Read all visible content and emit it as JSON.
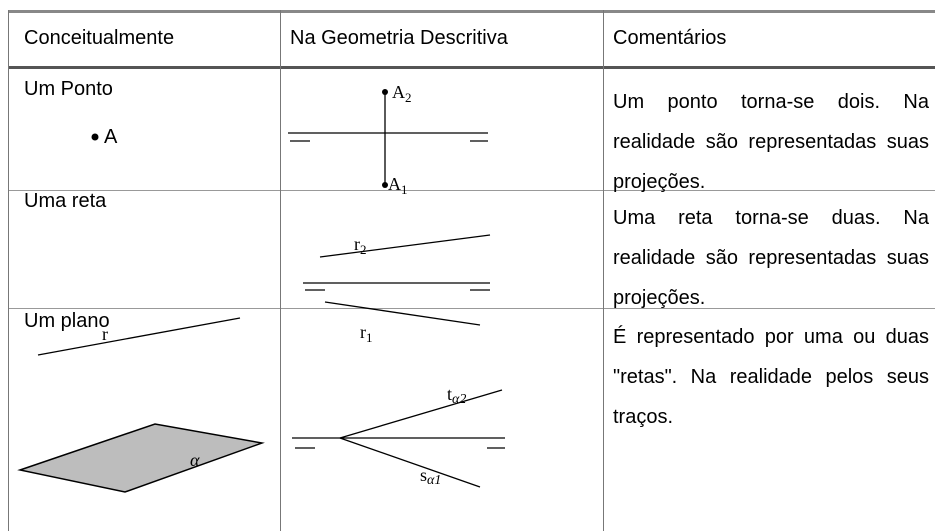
{
  "table": {
    "headers": [
      "Conceitualmente",
      "Na Geometria Descritiva",
      "Comentários"
    ],
    "rows": [
      {
        "concept": "Um Ponto",
        "concept_label": "A",
        "diagram_labels": [
          {
            "base": "A",
            "sub": "2"
          },
          {
            "base": "A",
            "sub": "1"
          }
        ],
        "comment": "Um ponto torna-se dois. Na realidade são representadas suas projeções."
      },
      {
        "concept": "Uma reta",
        "concept_label": "r",
        "diagram_labels": [
          {
            "base": "r",
            "sub": "2"
          },
          {
            "base": "r",
            "sub": "1"
          }
        ],
        "comment": "Uma reta torna-se duas. Na realidade são representadas suas projeções."
      },
      {
        "concept": "Um plano",
        "concept_label": "α",
        "diagram_labels": [
          {
            "base": "t",
            "sub": "α2"
          },
          {
            "base": "s",
            "sub": "α1"
          }
        ],
        "comment": "É representado por uma ou duas \"retas\". Na realidade pelos seus traços."
      }
    ]
  }
}
